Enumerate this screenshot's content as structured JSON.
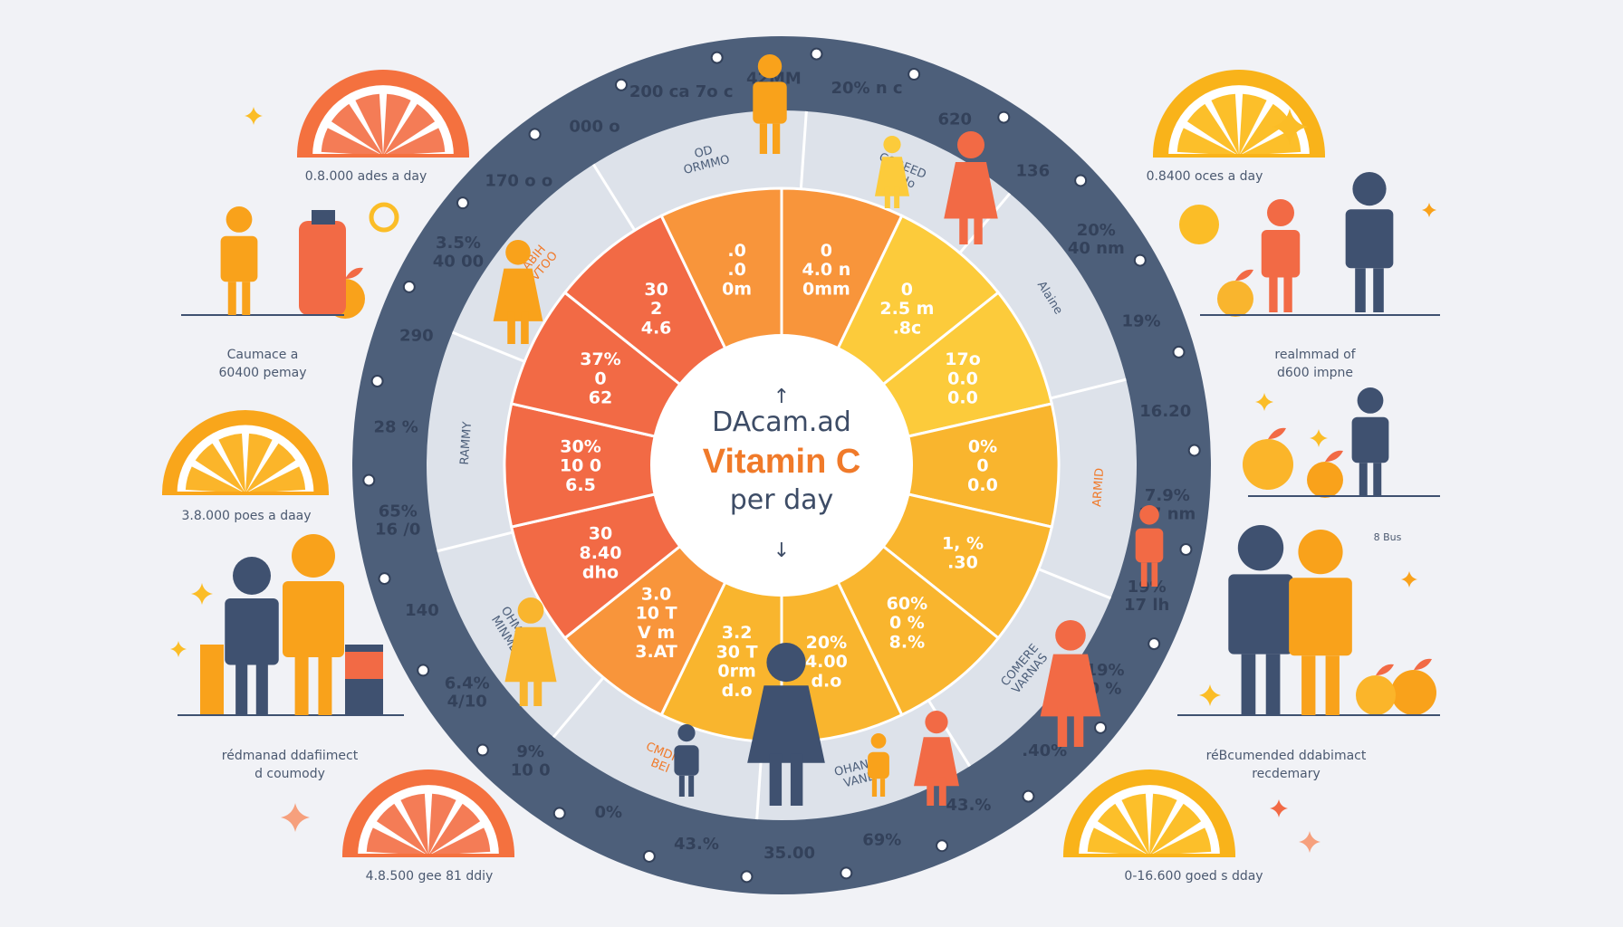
{
  "colors": {
    "dark_ring": "#4d5f7a",
    "light_ring": "#dde2ea",
    "orange_red": "#f26a45",
    "orange": "#f8953b",
    "amber": "#f9b52e",
    "yellow": "#fccb3b",
    "navy_figure": "#3f5170",
    "background": "#f1f2f6"
  },
  "center": {
    "line1": "DAcam.ad",
    "line2": "Vitamin C",
    "line3": "per day",
    "arrow_up": "↑",
    "arrow_down": "↓"
  },
  "chart_data": {
    "type": "pie",
    "title": "Vitamin C per day",
    "slices": [
      {
        "label": "0\n4.0 n\n0mm",
        "value": 1,
        "color": "#f8953b"
      },
      {
        "label": "0\n2.5 m\n.8c",
        "value": 1,
        "color": "#fccb3b"
      },
      {
        "label": "17o\n0.0\n0.0",
        "value": 1,
        "color": "#fccb3b"
      },
      {
        "label": "0%\n0\n0.0",
        "value": 1,
        "color": "#f9b52e"
      },
      {
        "label": "1, %\n.30",
        "value": 1,
        "color": "#f9b52e"
      },
      {
        "label": "60%\n0  %\n8.%",
        "value": 1,
        "color": "#f9b52e"
      },
      {
        "label": "20%\n4.00\nd.o",
        "value": 1,
        "color": "#f9b52e"
      },
      {
        "label": "3.2\n30 T\n0rm\nd.o",
        "value": 1,
        "color": "#f9b52e"
      },
      {
        "label": "3.0\n10 T\nV m\n3.AT",
        "value": 1,
        "color": "#f8953b"
      },
      {
        "label": "30\n8.40\ndho",
        "value": 1,
        "color": "#f26a45"
      },
      {
        "label": "30%\n10  0\n6.5",
        "value": 1,
        "color": "#f26a45"
      },
      {
        "label": "37%\n0\n62",
        "value": 1,
        "color": "#f26a45"
      },
      {
        "label": "30\n2\n4.6",
        "value": 1,
        "color": "#f26a45"
      },
      {
        "label": ".0\n.0\n0m",
        "value": 1,
        "color": "#f8953b"
      }
    ]
  },
  "inner_ring_labels": [
    {
      "text": "COREED\nobado"
    },
    {
      "text": "Alaine"
    },
    {
      "text": "ARMID"
    },
    {
      "text": "COMERE\nVARNAS"
    },
    {
      "text": "OHANIE\nVAND"
    },
    {
      "text": "CMDIO\nBEI"
    },
    {
      "text": "OHMRNE\nMINMEY"
    },
    {
      "text": "RAMMY"
    },
    {
      "text": "ABIH\nVTOO"
    },
    {
      "text": "OD\nORMMO"
    }
  ],
  "outer_ring_labels": [
    {
      "text": "200  ca 7o c"
    },
    {
      "text": "42MM"
    },
    {
      "text": "20%  n c"
    },
    {
      "text": "620"
    },
    {
      "text": "136"
    },
    {
      "text": "20%\n40 nm"
    },
    {
      "text": "19%"
    },
    {
      "text": "16.20"
    },
    {
      "text": "7.9%\n17 nm"
    },
    {
      "text": "19%\n17 lh"
    },
    {
      "text": "19%\n0 %"
    },
    {
      "text": ".40%"
    },
    {
      "text": "43.%"
    },
    {
      "text": "69%"
    },
    {
      "text": "35.00"
    },
    {
      "text": "43.%"
    },
    {
      "text": "0%"
    },
    {
      "text": "9%\n10 0"
    },
    {
      "text": "6.4%\n4/10"
    },
    {
      "text": "140"
    },
    {
      "text": "65%\n16 /0"
    },
    {
      "text": "28 %"
    },
    {
      "text": "290"
    },
    {
      "text": "3.5%\n40 00"
    },
    {
      "text": "170 o o"
    },
    {
      "text": "000 o"
    }
  ],
  "captions": {
    "top_left": "0.8.000 ades a day",
    "top_right": "0.8400 oces a day",
    "left_mid1": "Caumace a\n60400 pemay",
    "left_mid2": "3.8.000 poes a daay",
    "left_bottom": "rédmanad ddafiimect\nd coumody",
    "bottom_left": "4.8.500 gee 81 ddiy",
    "right_mid1": "realmmad of\nd600 impne",
    "right_mid2": "8 Bus",
    "right_bottom": "réBcumended ddabimact\nrecdemary",
    "bottom_right": "0-16.600 goed s dday"
  },
  "icons": [
    "citrus-slice-icon",
    "person-icon",
    "bottle-icon",
    "sparkle-icon",
    "sun-icon",
    "orange-fruit-icon",
    "heart-icon",
    "leaf-icon"
  ]
}
